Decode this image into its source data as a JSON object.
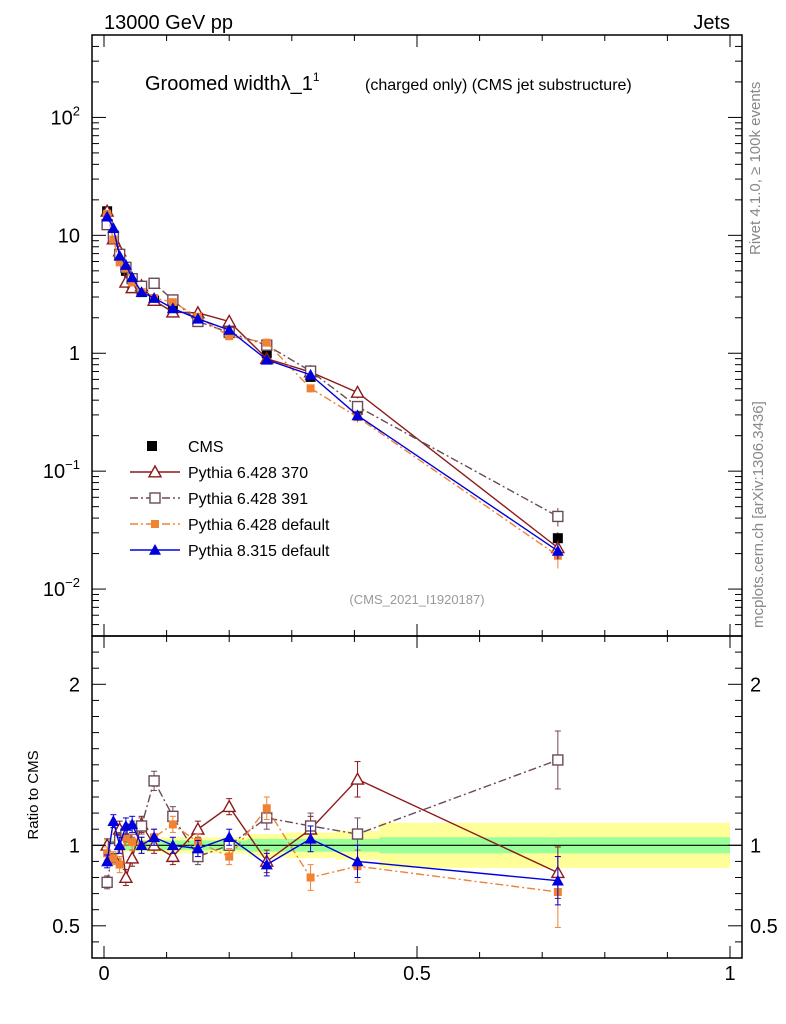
{
  "header": {
    "left": "13000 GeV pp",
    "right": "Jets"
  },
  "side_texts": {
    "rivet": "Rivet 4.1.0, ≥ 100k events",
    "mcplots": "mcplots.cern.ch [arXiv:1306.3436]"
  },
  "chart_data": {
    "type": "scatter",
    "title": "Groomed widthλ_1",
    "title_sup": "1",
    "subtitle": "(charged only) (CMS jet substructure)",
    "analysis_id": "(CMS_2021_I1920187)",
    "xlim": [
      0,
      1
    ],
    "top_panel": {
      "yscale": "log",
      "ylim": [
        0.004,
        500
      ],
      "ytick_values": [
        0.01,
        0.1,
        1,
        10,
        100
      ],
      "ytick_labels": [
        {
          "base": "10",
          "sup": "−2"
        },
        {
          "base": "10",
          "sup": "−1"
        },
        {
          "base": "1",
          "sup": ""
        },
        {
          "base": "10",
          "sup": ""
        },
        {
          "base": "10",
          "sup": "2"
        }
      ]
    },
    "bottom_panel": {
      "ylabel": "Ratio to CMS",
      "ylim": [
        0.3,
        2.3
      ],
      "ytick_values": [
        0.5,
        1,
        2
      ],
      "ytick_labels": [
        "0.5",
        "1",
        "2"
      ]
    },
    "xtick_values": [
      0,
      0.5,
      1
    ],
    "xtick_labels": [
      "0",
      "0.5",
      "1"
    ],
    "x": [
      0.005,
      0.015,
      0.025,
      0.035,
      0.045,
      0.06,
      0.08,
      0.11,
      0.15,
      0.2,
      0.26,
      0.33,
      0.405,
      0.725
    ],
    "bin_edges": [
      0,
      0.01,
      0.02,
      0.03,
      0.04,
      0.05,
      0.07,
      0.09,
      0.13,
      0.17,
      0.23,
      0.29,
      0.37,
      0.44,
      1.0
    ],
    "data_band": {
      "stat_rel": [
        0.03,
        0.03,
        0.03,
        0.03,
        0.03,
        0.03,
        0.03,
        0.03,
        0.03,
        0.03,
        0.04,
        0.04,
        0.04,
        0.05
      ],
      "total_rel": [
        0.04,
        0.04,
        0.04,
        0.04,
        0.04,
        0.04,
        0.04,
        0.05,
        0.05,
        0.05,
        0.07,
        0.08,
        0.09,
        0.14
      ]
    },
    "series": [
      {
        "name": "CMS",
        "color": "#000000",
        "marker": "square-filled",
        "line": "none",
        "values": [
          16.0,
          10.0,
          6.7,
          5.0,
          3.9,
          3.3,
          2.8,
          2.4,
          2.0,
          1.5,
          1.0,
          0.63,
          0.33,
          0.027
        ],
        "err_rel": [
          0.03,
          0.03,
          0.03,
          0.03,
          0.03,
          0.03,
          0.03,
          0.03,
          0.03,
          0.03,
          0.05,
          0.06,
          0.07,
          0.12
        ]
      },
      {
        "name": "Pythia 6.428 370",
        "color": "#8b1a1a",
        "marker": "triangle-open",
        "line": "solid",
        "ratio": [
          1.0,
          0.93,
          1.1,
          0.8,
          0.92,
          1.13,
          1.0,
          0.93,
          1.1,
          1.24,
          0.9,
          1.1,
          1.41,
          0.83
        ],
        "ratio_err": [
          0.04,
          0.04,
          0.05,
          0.05,
          0.05,
          0.05,
          0.05,
          0.05,
          0.05,
          0.05,
          0.07,
          0.08,
          0.11,
          0.16
        ]
      },
      {
        "name": "Pythia 6.428 391",
        "color": "#6b4a5a",
        "marker": "square-open",
        "line": "dashdot",
        "ratio": [
          0.77,
          0.98,
          1.03,
          1.07,
          1.1,
          1.12,
          1.4,
          1.18,
          0.93,
          1.0,
          1.17,
          1.12,
          1.07,
          1.53
        ],
        "ratio_err": [
          0.04,
          0.04,
          0.05,
          0.05,
          0.05,
          0.05,
          0.06,
          0.06,
          0.05,
          0.05,
          0.07,
          0.08,
          0.1,
          0.18
        ]
      },
      {
        "name": "Pythia 6.428 default",
        "color": "#f08232",
        "marker": "square-small",
        "line": "dashdot",
        "ratio": [
          0.95,
          0.92,
          0.88,
          1.05,
          1.02,
          1.0,
          1.05,
          1.13,
          1.02,
          0.93,
          1.23,
          0.8,
          0.87,
          0.71
        ],
        "ratio_err": [
          0.04,
          0.04,
          0.05,
          0.05,
          0.05,
          0.05,
          0.05,
          0.05,
          0.05,
          0.05,
          0.07,
          0.08,
          0.1,
          0.22
        ]
      },
      {
        "name": "Pythia 8.315 default",
        "color": "#0000dd",
        "marker": "triangle-filled",
        "line": "solid",
        "ratio": [
          0.9,
          1.15,
          1.0,
          1.12,
          1.13,
          1.0,
          1.05,
          1.0,
          0.98,
          1.05,
          0.88,
          1.04,
          0.9,
          0.78
        ],
        "ratio_err": [
          0.04,
          0.04,
          0.05,
          0.05,
          0.05,
          0.05,
          0.05,
          0.05,
          0.05,
          0.05,
          0.07,
          0.08,
          0.1,
          0.15
        ]
      }
    ]
  }
}
